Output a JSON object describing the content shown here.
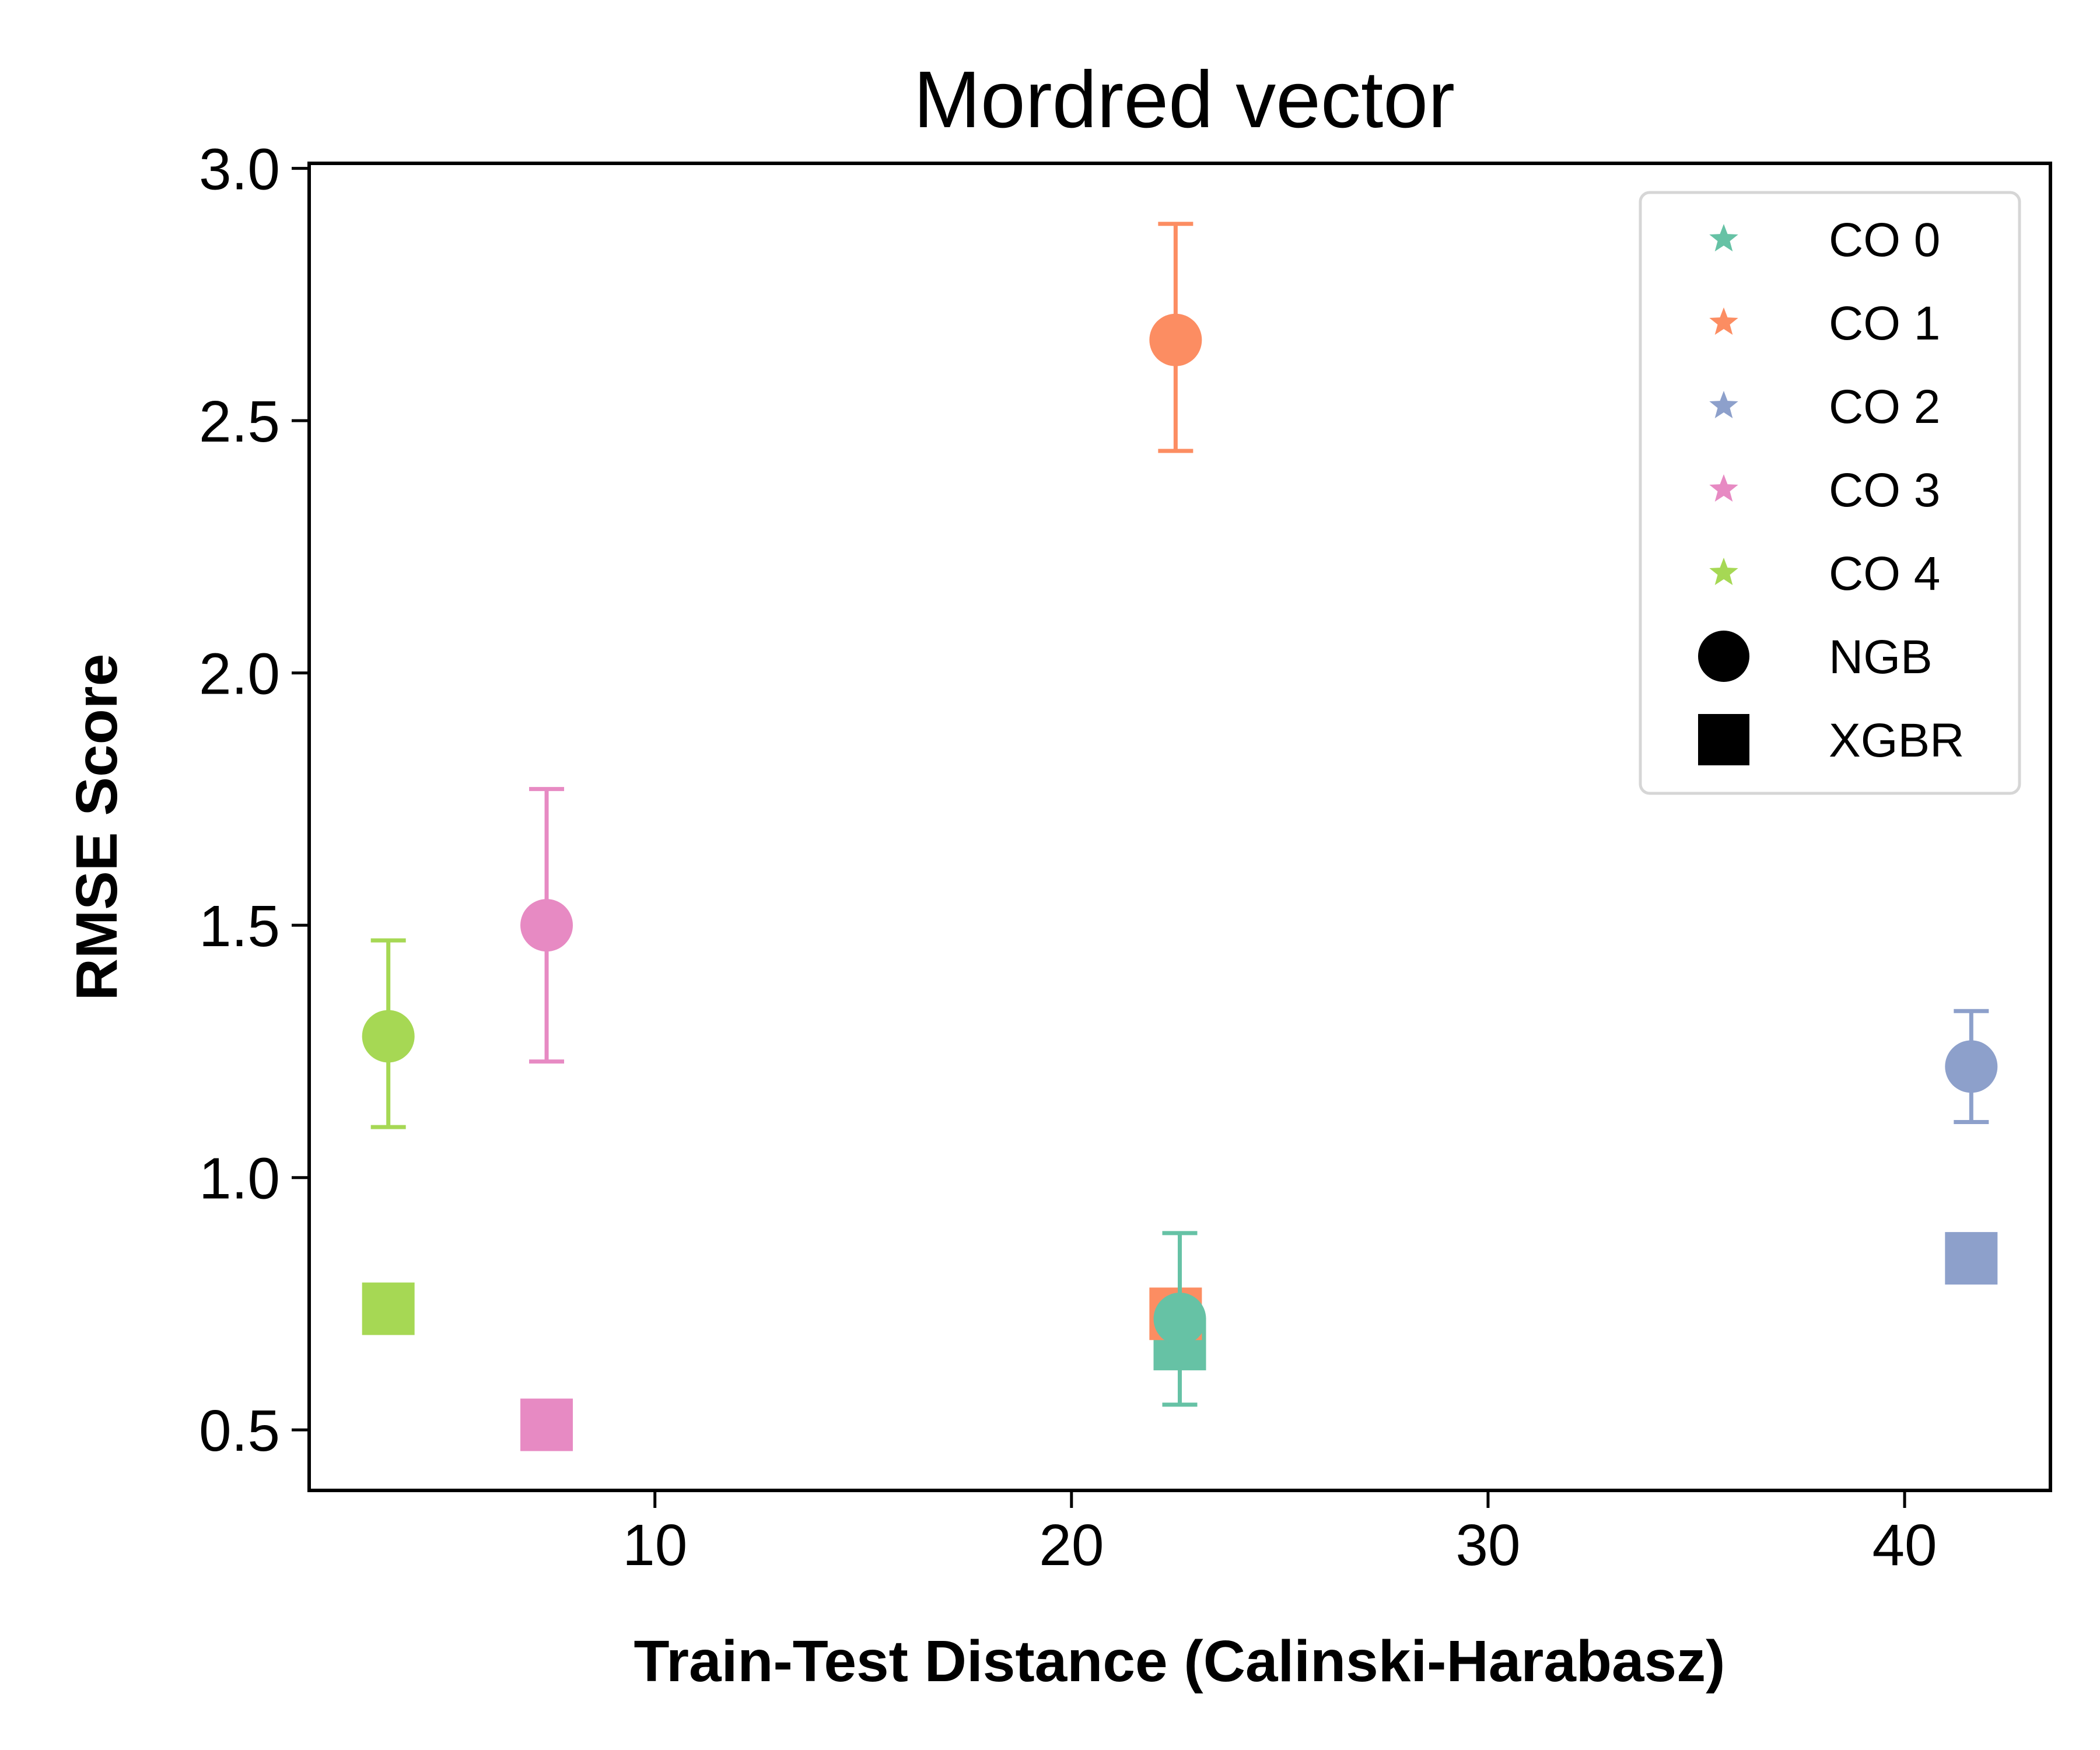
{
  "chart_data": {
    "type": "scatter",
    "title": "Mordred vector",
    "xlabel": "Train-Test Distance (Calinski-Harabasz)",
    "ylabel": "RMSE Score",
    "xlim": [
      1.7,
      43.5
    ],
    "ylim": [
      0.38,
      3.01
    ],
    "xticks": [
      10,
      20,
      30,
      40
    ],
    "yticks": [
      0.5,
      1.0,
      1.5,
      2.0,
      2.5,
      3.0
    ],
    "xtick_labels": [
      "10",
      "20",
      "30",
      "40"
    ],
    "ytick_labels": [
      "0.5",
      "1.0",
      "1.5",
      "2.0",
      "2.5",
      "3.0"
    ],
    "grid": false,
    "legend_position": "top-right",
    "series": [
      {
        "name": "CO 0",
        "color": "#66c2a5",
        "x": 22.6,
        "ngb": 0.72,
        "ngb_err": [
          0.55,
          0.89
        ],
        "xgbr": 0.67
      },
      {
        "name": "CO 1",
        "color": "#fc8d62",
        "x": 22.5,
        "ngb": 2.66,
        "ngb_err": [
          2.44,
          2.89
        ],
        "xgbr": 0.73
      },
      {
        "name": "CO 2",
        "color": "#8da0cb",
        "x": 41.6,
        "ngb": 1.22,
        "ngb_err": [
          1.11,
          1.33
        ],
        "xgbr": 0.84
      },
      {
        "name": "CO 3",
        "color": "#e78ac3",
        "x": 7.4,
        "ngb": 1.5,
        "ngb_err": [
          1.23,
          1.77
        ],
        "xgbr": 0.51
      },
      {
        "name": "CO 4",
        "color": "#a6d854",
        "x": 3.6,
        "ngb": 1.28,
        "ngb_err": [
          1.1,
          1.47
        ],
        "xgbr": 0.74
      }
    ],
    "marker_legend": [
      {
        "name": "NGB",
        "shape": "circle"
      },
      {
        "name": "XGBR",
        "shape": "square"
      }
    ]
  }
}
